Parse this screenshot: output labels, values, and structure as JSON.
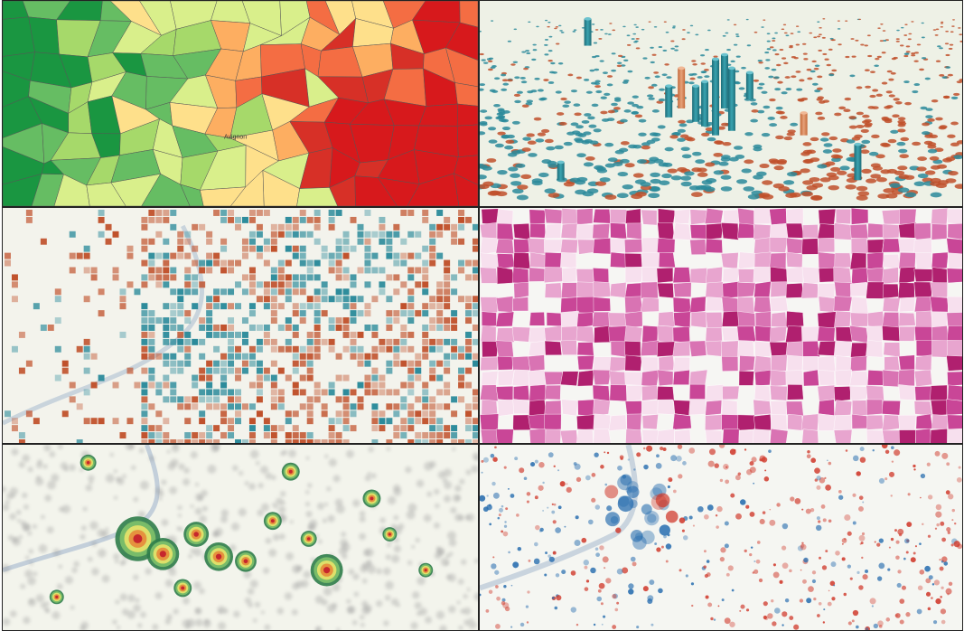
{
  "panels": [
    {
      "id": "choropleth-communes",
      "label": "Avignon"
    },
    {
      "id": "3d-hexbin-columns"
    },
    {
      "id": "square-grid-map"
    },
    {
      "id": "choropleth-pink"
    },
    {
      "id": "heatmap-density"
    },
    {
      "id": "proportional-circles"
    }
  ],
  "colors": {
    "diverging_red": [
      "#1a9641",
      "#66bd63",
      "#a6d96a",
      "#d9ef8b",
      "#fee08b",
      "#fdae61",
      "#f46d43",
      "#d73027",
      "#d7191c"
    ],
    "teal": "#2a8a9a",
    "rust": "#c0502a",
    "pink_scale": [
      "#f7e0ee",
      "#e8a5cf",
      "#d973b3",
      "#c94697",
      "#b0206f"
    ],
    "heat": [
      "#2f7d4a",
      "#7fc26a",
      "#e9e36a",
      "#e58a3a",
      "#c21c2b"
    ],
    "blue": "#2a6fb0",
    "red": "#d0392b",
    "basemap": "#f4f4ef",
    "river": "#b6c6d6"
  }
}
